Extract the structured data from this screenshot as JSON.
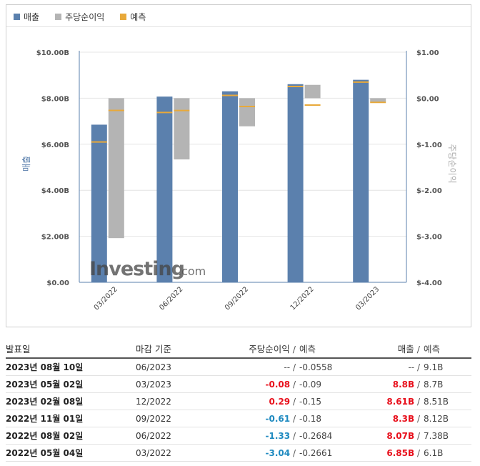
{
  "legend": [
    {
      "label": "매출",
      "color": "#5b80ad"
    },
    {
      "label": "주당순이익",
      "color": "#b4b4b4"
    },
    {
      "label": "예측",
      "color": "#e8a93a"
    }
  ],
  "watermark": {
    "brand": "Investing",
    "suffix": ".com"
  },
  "chart_data": {
    "type": "bar",
    "categories": [
      "03/2022",
      "06/2022",
      "09/2022",
      "12/2022",
      "03/2023"
    ],
    "left_axis": {
      "label": "매출",
      "ticks": [
        "$0.00",
        "$2.00B",
        "$4.00B",
        "$6.00B",
        "$8.00B",
        "$10.00B"
      ],
      "range": [
        0,
        10
      ]
    },
    "right_axis": {
      "label": "주당순이익",
      "ticks": [
        "$-4.00",
        "$-3.00",
        "$-2.00",
        "$-1.00",
        "$0.00",
        "$1.00"
      ],
      "range": [
        -4,
        1
      ]
    },
    "series": [
      {
        "name": "매출",
        "axis": "left",
        "values": [
          6.85,
          8.07,
          8.3,
          8.61,
          8.8
        ],
        "forecast": [
          6.1,
          7.38,
          8.12,
          8.51,
          8.7
        ]
      },
      {
        "name": "주당순이익",
        "axis": "right",
        "values": [
          -3.04,
          -1.33,
          -0.61,
          0.29,
          -0.08
        ],
        "forecast": [
          -0.2661,
          -0.2684,
          -0.18,
          -0.15,
          -0.09
        ]
      }
    ],
    "legend_position": "top-left",
    "grid": true
  },
  "table": {
    "headers": {
      "date": "발표일",
      "period": "마감 기준",
      "eps": "주당순이익",
      "eps_forecast": "예측",
      "revenue": "매출",
      "revenue_forecast": "예측",
      "sep": "/"
    },
    "rows": [
      {
        "date": "2023년 08월 10일",
        "period": "06/2023",
        "eps": "--",
        "eps_forecast": "-0.0558",
        "revenue": "--",
        "revenue_forecast": "9.1B",
        "eps_state": "none",
        "rev_state": "none"
      },
      {
        "date": "2023년 05월 02일",
        "period": "03/2023",
        "eps": "-0.08",
        "eps_forecast": "-0.09",
        "revenue": "8.8B",
        "revenue_forecast": "8.7B",
        "eps_state": "pos",
        "rev_state": "pos"
      },
      {
        "date": "2023년 02월 08일",
        "period": "12/2022",
        "eps": "0.29",
        "eps_forecast": "-0.15",
        "revenue": "8.61B",
        "revenue_forecast": "8.51B",
        "eps_state": "pos",
        "rev_state": "pos"
      },
      {
        "date": "2022년 11월 01일",
        "period": "09/2022",
        "eps": "-0.61",
        "eps_forecast": "-0.18",
        "revenue": "8.3B",
        "revenue_forecast": "8.12B",
        "eps_state": "neg",
        "rev_state": "pos"
      },
      {
        "date": "2022년 08월 02일",
        "period": "06/2022",
        "eps": "-1.33",
        "eps_forecast": "-0.2684",
        "revenue": "8.07B",
        "revenue_forecast": "7.38B",
        "eps_state": "neg",
        "rev_state": "pos"
      },
      {
        "date": "2022년 05월 04일",
        "period": "03/2022",
        "eps": "-3.04",
        "eps_forecast": "-0.2661",
        "revenue": "6.85B",
        "revenue_forecast": "6.1B",
        "eps_state": "neg",
        "rev_state": "pos"
      }
    ]
  }
}
